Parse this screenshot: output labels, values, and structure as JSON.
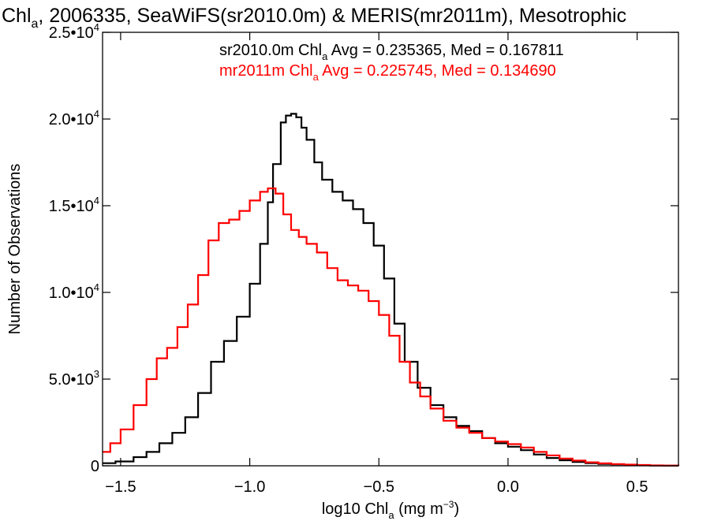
{
  "chart_data": {
    "type": "line",
    "title": {
      "pre": "Chl",
      "sub": "a",
      "post": ", 2006335, SeaWiFS(sr2010.0m) & MERIS(mr2011m), Mesotrophic"
    },
    "xlabel": {
      "pre": "log10 Chl",
      "sub": "a",
      "mid": " (mg m",
      "sup": "−3",
      "post": ")"
    },
    "ylabel": "Number of Observations",
    "xlim": [
      -1.57,
      0.66
    ],
    "ylim": [
      0,
      25000
    ],
    "xticks": [
      {
        "v": -1.5,
        "label": "−1.5"
      },
      {
        "v": -1.0,
        "label": "−1.0"
      },
      {
        "v": -0.5,
        "label": "−0.5"
      },
      {
        "v": 0.0,
        "label": "0.0"
      },
      {
        "v": 0.5,
        "label": "0.5"
      }
    ],
    "yticks": [
      {
        "v": 0,
        "mant": "0",
        "exp": ""
      },
      {
        "v": 5000,
        "mant": "5.0•10",
        "exp": "3"
      },
      {
        "v": 10000,
        "mant": "1.0•10",
        "exp": "4"
      },
      {
        "v": 15000,
        "mant": "1.5•10",
        "exp": "4"
      },
      {
        "v": 20000,
        "mant": "2.0•10",
        "exp": "4"
      },
      {
        "v": 25000,
        "mant": "2.5•10",
        "exp": "4"
      }
    ],
    "annotations": [
      {
        "color": "#000000",
        "pre": "sr2010.0m Chl",
        "sub": "a",
        "post": " Avg = 0.235365, Med = 0.167811"
      },
      {
        "color": "#ff0000",
        "pre": "mr2011m Chl",
        "sub": "a",
        "post": " Avg = 0.225745, Med = 0.134690"
      }
    ],
    "series": [
      {
        "color": "#000000",
        "points": [
          [
            -1.57,
            150
          ],
          [
            -1.52,
            250
          ],
          [
            -1.45,
            500
          ],
          [
            -1.4,
            800
          ],
          [
            -1.35,
            1300
          ],
          [
            -1.3,
            1900
          ],
          [
            -1.25,
            2800
          ],
          [
            -1.2,
            4200
          ],
          [
            -1.15,
            6000
          ],
          [
            -1.1,
            7200
          ],
          [
            -1.05,
            8600
          ],
          [
            -1.0,
            10500
          ],
          [
            -0.96,
            12800
          ],
          [
            -0.93,
            15200
          ],
          [
            -0.91,
            17400
          ],
          [
            -0.88,
            19800
          ],
          [
            -0.86,
            20200
          ],
          [
            -0.84,
            20300
          ],
          [
            -0.82,
            20100
          ],
          [
            -0.8,
            19500
          ],
          [
            -0.78,
            18800
          ],
          [
            -0.75,
            17500
          ],
          [
            -0.72,
            16500
          ],
          [
            -0.68,
            15800
          ],
          [
            -0.64,
            15300
          ],
          [
            -0.6,
            14800
          ],
          [
            -0.56,
            14000
          ],
          [
            -0.52,
            12700
          ],
          [
            -0.48,
            10800
          ],
          [
            -0.44,
            8200
          ],
          [
            -0.4,
            6000
          ],
          [
            -0.35,
            4500
          ],
          [
            -0.3,
            3500
          ],
          [
            -0.25,
            2800
          ],
          [
            -0.2,
            2300
          ],
          [
            -0.15,
            2000
          ],
          [
            -0.1,
            1600
          ],
          [
            -0.05,
            1300
          ],
          [
            0.0,
            1100
          ],
          [
            0.05,
            900
          ],
          [
            0.1,
            650
          ],
          [
            0.15,
            450
          ],
          [
            0.2,
            320
          ],
          [
            0.25,
            220
          ],
          [
            0.3,
            150
          ],
          [
            0.35,
            110
          ],
          [
            0.4,
            80
          ],
          [
            0.45,
            55
          ],
          [
            0.5,
            35
          ],
          [
            0.55,
            20
          ],
          [
            0.6,
            10
          ],
          [
            0.66,
            5
          ]
        ]
      },
      {
        "color": "#ff0000",
        "points": [
          [
            -1.57,
            800
          ],
          [
            -1.54,
            1300
          ],
          [
            -1.5,
            2100
          ],
          [
            -1.45,
            3500
          ],
          [
            -1.4,
            5000
          ],
          [
            -1.36,
            6200
          ],
          [
            -1.32,
            6800
          ],
          [
            -1.28,
            8000
          ],
          [
            -1.24,
            9300
          ],
          [
            -1.2,
            11000
          ],
          [
            -1.16,
            13000
          ],
          [
            -1.12,
            14000
          ],
          [
            -1.08,
            14200
          ],
          [
            -1.04,
            14700
          ],
          [
            -1.0,
            15300
          ],
          [
            -0.96,
            15800
          ],
          [
            -0.93,
            16000
          ],
          [
            -0.9,
            15700
          ],
          [
            -0.87,
            14500
          ],
          [
            -0.84,
            13600
          ],
          [
            -0.81,
            13200
          ],
          [
            -0.78,
            12800
          ],
          [
            -0.74,
            12300
          ],
          [
            -0.7,
            11400
          ],
          [
            -0.66,
            10700
          ],
          [
            -0.62,
            10400
          ],
          [
            -0.58,
            10100
          ],
          [
            -0.54,
            9500
          ],
          [
            -0.5,
            8700
          ],
          [
            -0.46,
            7500
          ],
          [
            -0.42,
            6000
          ],
          [
            -0.38,
            4800
          ],
          [
            -0.34,
            4000
          ],
          [
            -0.3,
            3300
          ],
          [
            -0.25,
            2600
          ],
          [
            -0.2,
            2200
          ],
          [
            -0.15,
            1900
          ],
          [
            -0.1,
            1600
          ],
          [
            -0.05,
            1400
          ],
          [
            0.0,
            1250
          ],
          [
            0.05,
            1050
          ],
          [
            0.1,
            800
          ],
          [
            0.15,
            600
          ],
          [
            0.2,
            420
          ],
          [
            0.25,
            300
          ],
          [
            0.3,
            200
          ],
          [
            0.35,
            140
          ],
          [
            0.4,
            100
          ],
          [
            0.45,
            70
          ],
          [
            0.5,
            45
          ],
          [
            0.55,
            25
          ],
          [
            0.6,
            15
          ],
          [
            0.66,
            8
          ]
        ]
      }
    ]
  }
}
